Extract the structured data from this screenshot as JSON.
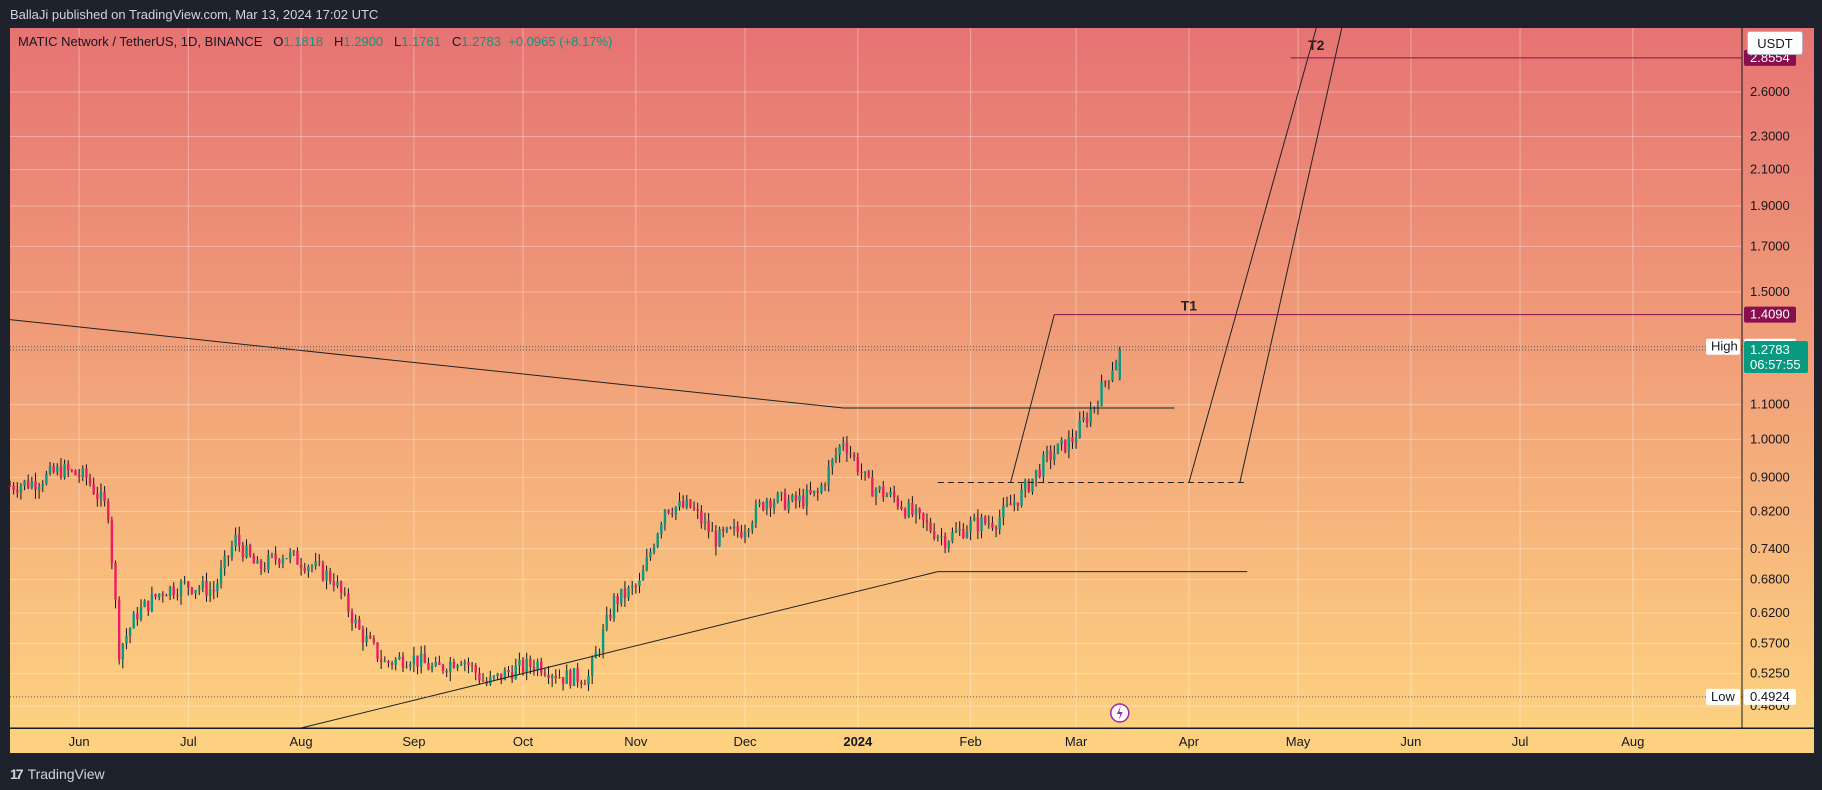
{
  "header": {
    "published": "BallaJi published on TradingView.com, Mar 13, 2024 17:02 UTC"
  },
  "footer": {
    "brand": "TradingView",
    "brand_mark": "17"
  },
  "legend": {
    "symbol": "MATIC Network / TetherUS, 1D, BINANCE",
    "o_label": "O",
    "o": "1.1818",
    "h_label": "H",
    "h": "1.2900",
    "l_label": "L",
    "l": "1.1761",
    "c_label": "C",
    "c": "1.2783",
    "change": "+0.0965 (+8.17%)"
  },
  "currency": "USDT",
  "colors": {
    "bg_top": "#e67373",
    "bg_bottom": "#fdd180",
    "up": "#089981",
    "down": "#e91e63",
    "wick": "#131722",
    "target_label": "#880e4f",
    "price_label": "#089981"
  },
  "chart_data": {
    "type": "candlestick",
    "scale": "log",
    "ylim": [
      0.452,
      3.1
    ],
    "y_ticks": [
      "2.6000",
      "2.3000",
      "2.1000",
      "1.9000",
      "1.7000",
      "1.5000",
      "1.1000",
      "1.0000",
      "0.9000",
      "0.8200",
      "0.7400",
      "0.6800",
      "0.6200",
      "0.5700",
      "0.5250",
      "0.4800"
    ],
    "x_ticks": [
      {
        "label": "Jun",
        "date": "2023-06-01"
      },
      {
        "label": "Jul",
        "date": "2023-07-01"
      },
      {
        "label": "Aug",
        "date": "2023-08-01"
      },
      {
        "label": "Sep",
        "date": "2023-09-01"
      },
      {
        "label": "Oct",
        "date": "2023-10-01"
      },
      {
        "label": "Nov",
        "date": "2023-11-01"
      },
      {
        "label": "Dec",
        "date": "2023-12-01"
      },
      {
        "label": "2024",
        "date": "2024-01-01",
        "bold": true
      },
      {
        "label": "Feb",
        "date": "2024-02-01"
      },
      {
        "label": "Mar",
        "date": "2024-03-01"
      },
      {
        "label": "Apr",
        "date": "2024-04-01"
      },
      {
        "label": "May",
        "date": "2024-05-01"
      },
      {
        "label": "Jun",
        "date": "2024-06-01"
      },
      {
        "label": "Jul",
        "date": "2024-07-01"
      },
      {
        "label": "Aug",
        "date": "2024-08-01"
      }
    ],
    "x_range": [
      "2023-05-13",
      "2024-08-31"
    ],
    "closes_weekly": [
      {
        "d": "2023-05-13",
        "c": 0.88
      },
      {
        "d": "2023-05-20",
        "c": 0.89
      },
      {
        "d": "2023-05-27",
        "c": 0.92
      },
      {
        "d": "2023-06-03",
        "c": 0.9
      },
      {
        "d": "2023-06-09",
        "c": 0.82
      },
      {
        "d": "2023-06-12",
        "c": 0.56
      },
      {
        "d": "2023-06-17",
        "c": 0.62
      },
      {
        "d": "2023-06-24",
        "c": 0.66
      },
      {
        "d": "2023-07-01",
        "c": 0.67
      },
      {
        "d": "2023-07-08",
        "c": 0.66
      },
      {
        "d": "2023-07-14",
        "c": 0.76
      },
      {
        "d": "2023-07-20",
        "c": 0.7
      },
      {
        "d": "2023-07-27",
        "c": 0.73
      },
      {
        "d": "2023-08-03",
        "c": 0.71
      },
      {
        "d": "2023-08-10",
        "c": 0.68
      },
      {
        "d": "2023-08-17",
        "c": 0.59
      },
      {
        "d": "2023-08-24",
        "c": 0.54
      },
      {
        "d": "2023-08-31",
        "c": 0.55
      },
      {
        "d": "2023-09-07",
        "c": 0.53
      },
      {
        "d": "2023-09-14",
        "c": 0.55
      },
      {
        "d": "2023-09-21",
        "c": 0.51
      },
      {
        "d": "2023-09-28",
        "c": 0.53
      },
      {
        "d": "2023-10-05",
        "c": 0.54
      },
      {
        "d": "2023-10-12",
        "c": 0.52
      },
      {
        "d": "2023-10-19",
        "c": 0.52
      },
      {
        "d": "2023-10-26",
        "c": 0.64
      },
      {
        "d": "2023-11-02",
        "c": 0.67
      },
      {
        "d": "2023-11-09",
        "c": 0.83
      },
      {
        "d": "2023-11-16",
        "c": 0.83
      },
      {
        "d": "2023-11-23",
        "c": 0.76
      },
      {
        "d": "2023-11-30",
        "c": 0.78
      },
      {
        "d": "2023-12-07",
        "c": 0.85
      },
      {
        "d": "2023-12-14",
        "c": 0.84
      },
      {
        "d": "2023-12-21",
        "c": 0.86
      },
      {
        "d": "2023-12-28",
        "c": 1.0
      },
      {
        "d": "2024-01-04",
        "c": 0.88
      },
      {
        "d": "2024-01-11",
        "c": 0.85
      },
      {
        "d": "2024-01-18",
        "c": 0.8
      },
      {
        "d": "2024-01-25",
        "c": 0.76
      },
      {
        "d": "2024-02-01",
        "c": 0.79
      },
      {
        "d": "2024-02-08",
        "c": 0.8
      },
      {
        "d": "2024-02-15",
        "c": 0.86
      },
      {
        "d": "2024-02-22",
        "c": 0.95
      },
      {
        "d": "2024-02-29",
        "c": 1.0
      },
      {
        "d": "2024-03-06",
        "c": 1.1
      },
      {
        "d": "2024-03-13",
        "c": 1.2783
      }
    ],
    "annotations": {
      "T1": {
        "label": "T1",
        "price": 1.409,
        "price_label": "1.4090",
        "from": "2024-02-24",
        "to": "2024-08-31"
      },
      "T2": {
        "label": "T2",
        "price": 2.8554,
        "price_label": "2.8554",
        "from": "2024-04-29",
        "to": "2024-08-31"
      },
      "resistance": {
        "price": 1.09,
        "from": "2023-12-28",
        "to": "2024-03-28"
      },
      "support": {
        "price": 0.695,
        "from": "2024-01-23",
        "to": "2024-04-17"
      },
      "entry_zone": {
        "price": 0.888,
        "from": "2024-01-23",
        "to": "2024-04-17",
        "dashed": true
      },
      "downtrend": {
        "from": {
          "d": "2023-05-13",
          "p": 1.39
        },
        "to": {
          "d": "2023-12-28",
          "p": 1.09
        }
      },
      "uptrend": {
        "from": {
          "d": "2023-08-01",
          "p": 0.452
        },
        "to": {
          "d": "2024-01-23",
          "p": 0.695
        }
      },
      "projection_channel": [
        {
          "from": {
            "d": "2024-02-12",
            "p": 0.888
          },
          "to": {
            "d": "2024-02-24",
            "p": 1.409
          }
        },
        {
          "from": {
            "d": "2024-04-01",
            "p": 0.888
          },
          "to": {
            "d": "2024-05-06",
            "p": 3.1
          }
        },
        {
          "from": {
            "d": "2024-04-15",
            "p": 0.888
          },
          "to": {
            "d": "2024-05-13",
            "p": 3.1
          }
        }
      ]
    },
    "price_labels": {
      "high": {
        "label": "High",
        "value": "1.2900",
        "price": 1.29
      },
      "last": {
        "value": "1.2783",
        "countdown": "06:57:55",
        "price": 1.2783
      },
      "low": {
        "label": "Low",
        "value": "0.4924",
        "price": 0.4924
      }
    }
  }
}
